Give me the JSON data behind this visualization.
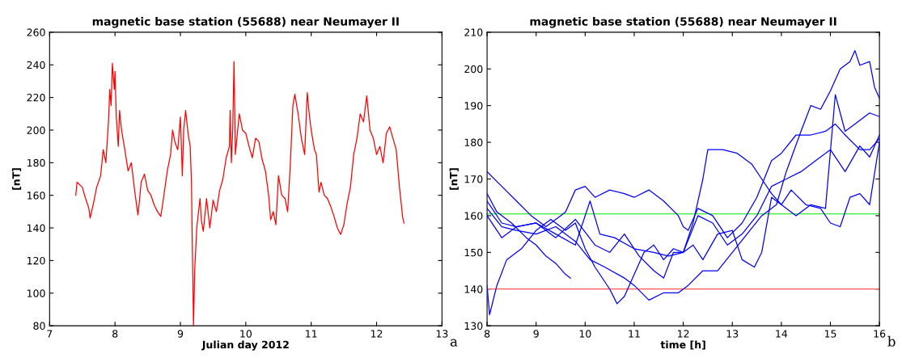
{
  "chart_data": [
    {
      "type": "line",
      "title": "magnetic base station (55688) near Neumayer II",
      "xlabel": "Julian day 2012",
      "ylabel": "[nT]",
      "annotations": [
        "a"
      ],
      "xlim": [
        7,
        13
      ],
      "xticks": [
        7,
        8,
        9,
        10,
        11,
        12,
        13
      ],
      "ylim": [
        80,
        260
      ],
      "yticks": [
        80,
        100,
        120,
        140,
        160,
        180,
        200,
        220,
        240,
        260
      ],
      "grid": false,
      "legend": false,
      "series": [
        {
          "color": "#ff0000",
          "x": [
            7.4,
            7.42,
            7.5,
            7.55,
            7.6,
            7.62,
            7.67,
            7.72,
            7.78,
            7.82,
            7.86,
            7.9,
            7.92,
            7.94,
            7.96,
            7.99,
            8.0,
            8.02,
            8.05,
            8.07,
            8.1,
            8.15,
            8.2,
            8.25,
            8.3,
            8.35,
            8.37,
            8.4,
            8.45,
            8.5,
            8.55,
            8.6,
            8.65,
            8.7,
            8.73,
            8.8,
            8.85,
            8.88,
            8.92,
            8.96,
            9.0,
            9.03,
            9.05,
            9.08,
            9.12,
            9.15,
            9.17,
            9.18,
            9.19,
            9.2,
            9.22,
            9.25,
            9.3,
            9.32,
            9.35,
            9.4,
            9.45,
            9.5,
            9.55,
            9.6,
            9.65,
            9.7,
            9.75,
            9.76,
            9.78,
            9.8,
            9.82,
            9.84,
            9.9,
            9.95,
            10.0,
            10.05,
            10.1,
            10.15,
            10.2,
            10.25,
            10.3,
            10.35,
            10.38,
            10.42,
            10.46,
            10.5,
            10.55,
            10.6,
            10.64,
            10.68,
            10.72,
            10.75,
            10.8,
            10.85,
            10.9,
            10.94,
            10.97,
            11.0,
            11.05,
            11.08,
            11.12,
            11.15,
            11.2,
            11.25,
            11.3,
            11.35,
            11.4,
            11.45,
            11.5,
            11.55,
            11.6,
            11.65,
            11.7,
            11.75,
            11.8,
            11.85,
            11.9,
            11.95,
            12.0,
            12.05,
            12.1,
            12.15,
            12.2,
            12.25,
            12.3,
            12.35,
            12.4,
            12.42
          ],
          "values": [
            160,
            168,
            165,
            158,
            152,
            146,
            155,
            165,
            172,
            188,
            180,
            205,
            225,
            215,
            241,
            225,
            236,
            208,
            190,
            212,
            200,
            188,
            175,
            180,
            163,
            148,
            155,
            168,
            173,
            163,
            160,
            154,
            150,
            147,
            155,
            175,
            185,
            200,
            192,
            188,
            208,
            172,
            200,
            212,
            197,
            190,
            167,
            135,
            110,
            80,
            115,
            140,
            158,
            145,
            138,
            158,
            140,
            157,
            150,
            163,
            170,
            183,
            190,
            212,
            180,
            200,
            242,
            185,
            210,
            200,
            198,
            190,
            183,
            195,
            193,
            182,
            175,
            160,
            145,
            150,
            142,
            172,
            160,
            158,
            150,
            178,
            215,
            222,
            210,
            195,
            185,
            223,
            210,
            200,
            188,
            185,
            162,
            168,
            160,
            158,
            153,
            147,
            140,
            136,
            142,
            155,
            165,
            185,
            195,
            210,
            205,
            221,
            200,
            195,
            185,
            190,
            180,
            198,
            202,
            195,
            188,
            165,
            146,
            143
          ]
        }
      ]
    },
    {
      "type": "line",
      "title": "magnetic base station (55688) near Neumayer II",
      "xlabel": "time [h]",
      "ylabel": "[nT]",
      "annotations": [
        "b"
      ],
      "xlim": [
        8,
        16
      ],
      "xticks": [
        8,
        9,
        10,
        11,
        12,
        13,
        14,
        15,
        16
      ],
      "ylim": [
        130,
        210
      ],
      "yticks": [
        130,
        140,
        150,
        160,
        170,
        180,
        190,
        200,
        210
      ],
      "grid": false,
      "legend": false,
      "ref_lines": [
        {
          "axis": "y",
          "value": 160.5,
          "color": "#33ee33"
        },
        {
          "axis": "y",
          "value": 140,
          "color": "#ff5555"
        }
      ],
      "series": [
        {
          "color": "#0000ff",
          "x": [
            8.0,
            8.05,
            8.2,
            8.4,
            8.7,
            9.0,
            9.3,
            9.6,
            9.8,
            10.0,
            10.2,
            10.5,
            10.65,
            10.8,
            11.0,
            11.2,
            11.4,
            11.6,
            11.8,
            12.0,
            12.2,
            12.4,
            12.7,
            13.0,
            13.2,
            13.45,
            13.6,
            13.8,
            14.0,
            14.2,
            14.5,
            14.8,
            15.0,
            15.2,
            15.4,
            15.6,
            15.8,
            16.0
          ],
          "values": [
            141,
            133,
            141,
            148,
            151,
            156,
            159,
            156,
            158,
            151,
            146,
            140,
            136,
            138,
            144,
            150,
            152,
            148,
            151,
            150,
            152,
            148,
            155,
            156,
            148,
            146,
            150,
            165,
            163,
            167,
            163,
            162,
            158,
            157,
            165,
            166,
            163,
            180
          ]
        },
        {
          "color": "#0000ff",
          "x": [
            8.0,
            8.2,
            8.5,
            8.8,
            9.0,
            9.2,
            9.4,
            9.6,
            9.7
          ],
          "values": [
            166,
            161,
            158,
            154,
            152,
            149,
            147,
            144,
            143
          ]
        },
        {
          "color": "#0000ff",
          "x": [
            8.0,
            8.3,
            8.6,
            8.9,
            9.2,
            9.5,
            9.6,
            9.8,
            10.0,
            10.2,
            10.5,
            10.8,
            11.0,
            11.3,
            11.6,
            11.9,
            12.0,
            12.1,
            12.3,
            12.6,
            12.9,
            13.2,
            13.5,
            13.8,
            14.0,
            14.3,
            14.6,
            14.9,
            15.1,
            15.3,
            15.6,
            15.8,
            16.0
          ],
          "values": [
            172,
            168,
            164,
            160,
            157,
            160,
            161,
            167,
            168,
            165,
            167,
            166,
            165,
            167,
            164,
            160,
            157,
            156,
            162,
            160,
            154,
            158,
            165,
            175,
            177,
            182,
            182,
            183,
            185,
            182,
            178,
            178,
            181
          ]
        },
        {
          "color": "#0000ff",
          "x": [
            8.0,
            8.3,
            8.6,
            9.0,
            9.4,
            9.8,
            10.1,
            10.4,
            10.8,
            11.0,
            11.3,
            11.6,
            11.9,
            12.1,
            12.4,
            12.7,
            13.0,
            13.3,
            13.6,
            13.9,
            14.1,
            14.4,
            14.6,
            14.8,
            15.0,
            15.2,
            15.4,
            15.5,
            15.6,
            15.8,
            15.9,
            16.0
          ],
          "values": [
            162,
            157,
            156,
            155,
            157,
            153,
            148,
            146,
            143,
            141,
            137,
            139,
            139,
            141,
            145,
            145,
            150,
            155,
            160,
            163,
            172,
            183,
            190,
            189,
            194,
            200,
            202,
            205,
            201,
            202,
            195,
            192
          ]
        },
        {
          "color": "#0000ff",
          "x": [
            8.0,
            8.3,
            8.6,
            9.0,
            9.4,
            9.8,
            10.1,
            10.3,
            10.6,
            11.0,
            11.4,
            11.7,
            12.0,
            12.2,
            12.4,
            12.5,
            12.8,
            13.1,
            13.4,
            13.6,
            13.8,
            14.0,
            14.3,
            14.6,
            14.9,
            15.1,
            15.3,
            15.5,
            15.8,
            16.0
          ],
          "values": [
            164,
            158,
            157,
            158,
            155,
            152,
            164,
            155,
            154,
            151,
            150,
            149,
            150,
            158,
            170,
            178,
            178,
            177,
            174,
            170,
            166,
            163,
            160,
            163,
            162,
            193,
            183,
            185,
            188,
            187
          ]
        },
        {
          "color": "#0000ff",
          "x": [
            8.0,
            8.3,
            8.6,
            9.0,
            9.4,
            9.8,
            10.2,
            10.5,
            10.8,
            11.1,
            11.4,
            11.6,
            11.8,
            12.0,
            12.3,
            12.6,
            12.9,
            13.2,
            13.5,
            13.8,
            14.1,
            14.4,
            14.7,
            15.0,
            15.3,
            15.6,
            15.8,
            16.0
          ],
          "values": [
            160,
            154,
            157,
            158,
            154,
            159,
            152,
            150,
            155,
            149,
            145,
            143,
            150,
            150,
            160,
            158,
            152,
            155,
            160,
            168,
            170,
            172,
            175,
            178,
            172,
            179,
            176,
            182
          ]
        }
      ]
    }
  ]
}
